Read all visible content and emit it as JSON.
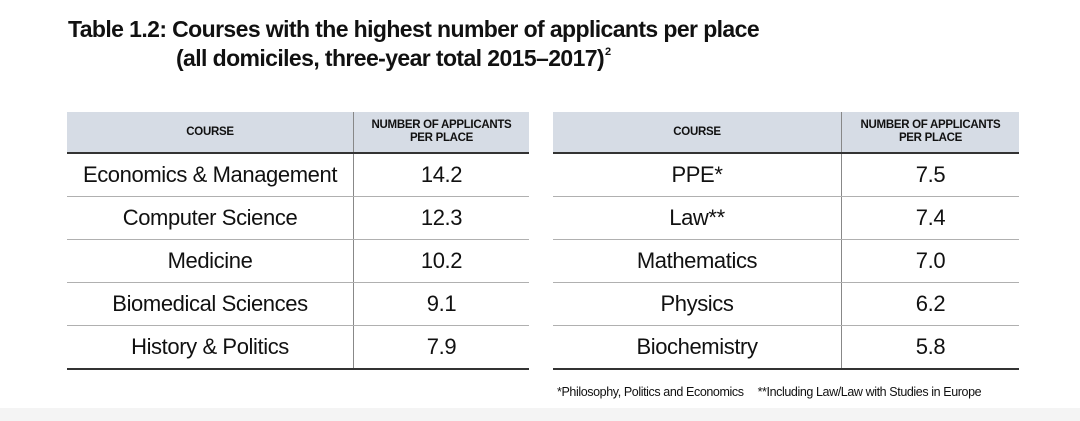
{
  "title": {
    "line1": "Table 1.2: Courses with the highest number of applicants per place",
    "line2": "(all domiciles, three-year total 2015–2017)",
    "footnote_mark": "2"
  },
  "left_table": {
    "header_course": "COURSE",
    "header_number_line1": "NUMBER OF APPLICANTS",
    "header_number_line2": "PER PLACE",
    "rows": [
      {
        "course": "Economics & Management",
        "value": "14.2"
      },
      {
        "course": "Computer Science",
        "value": "12.3"
      },
      {
        "course": "Medicine",
        "value": "10.2"
      },
      {
        "course": "Biomedical Sciences",
        "value": "9.1"
      },
      {
        "course": "History & Politics",
        "value": "7.9"
      }
    ]
  },
  "right_table": {
    "header_course": "COURSE",
    "header_number_line1": "NUMBER OF APPLICANTS",
    "header_number_line2": "PER PLACE",
    "rows": [
      {
        "course": "PPE*",
        "value": "7.5"
      },
      {
        "course": "Law**",
        "value": "7.4"
      },
      {
        "course": "Mathematics",
        "value": "7.0"
      },
      {
        "course": "Physics",
        "value": "6.2"
      },
      {
        "course": "Biochemistry",
        "value": "5.8"
      }
    ]
  },
  "footnotes": {
    "note1": "*Philosophy, Politics and Economics",
    "note2": "**Including Law/Law with Studies in Europe"
  },
  "colors": {
    "header_background": "#d6dce5",
    "rule_dark": "#333333",
    "rule_light": "#b0b0b0"
  }
}
